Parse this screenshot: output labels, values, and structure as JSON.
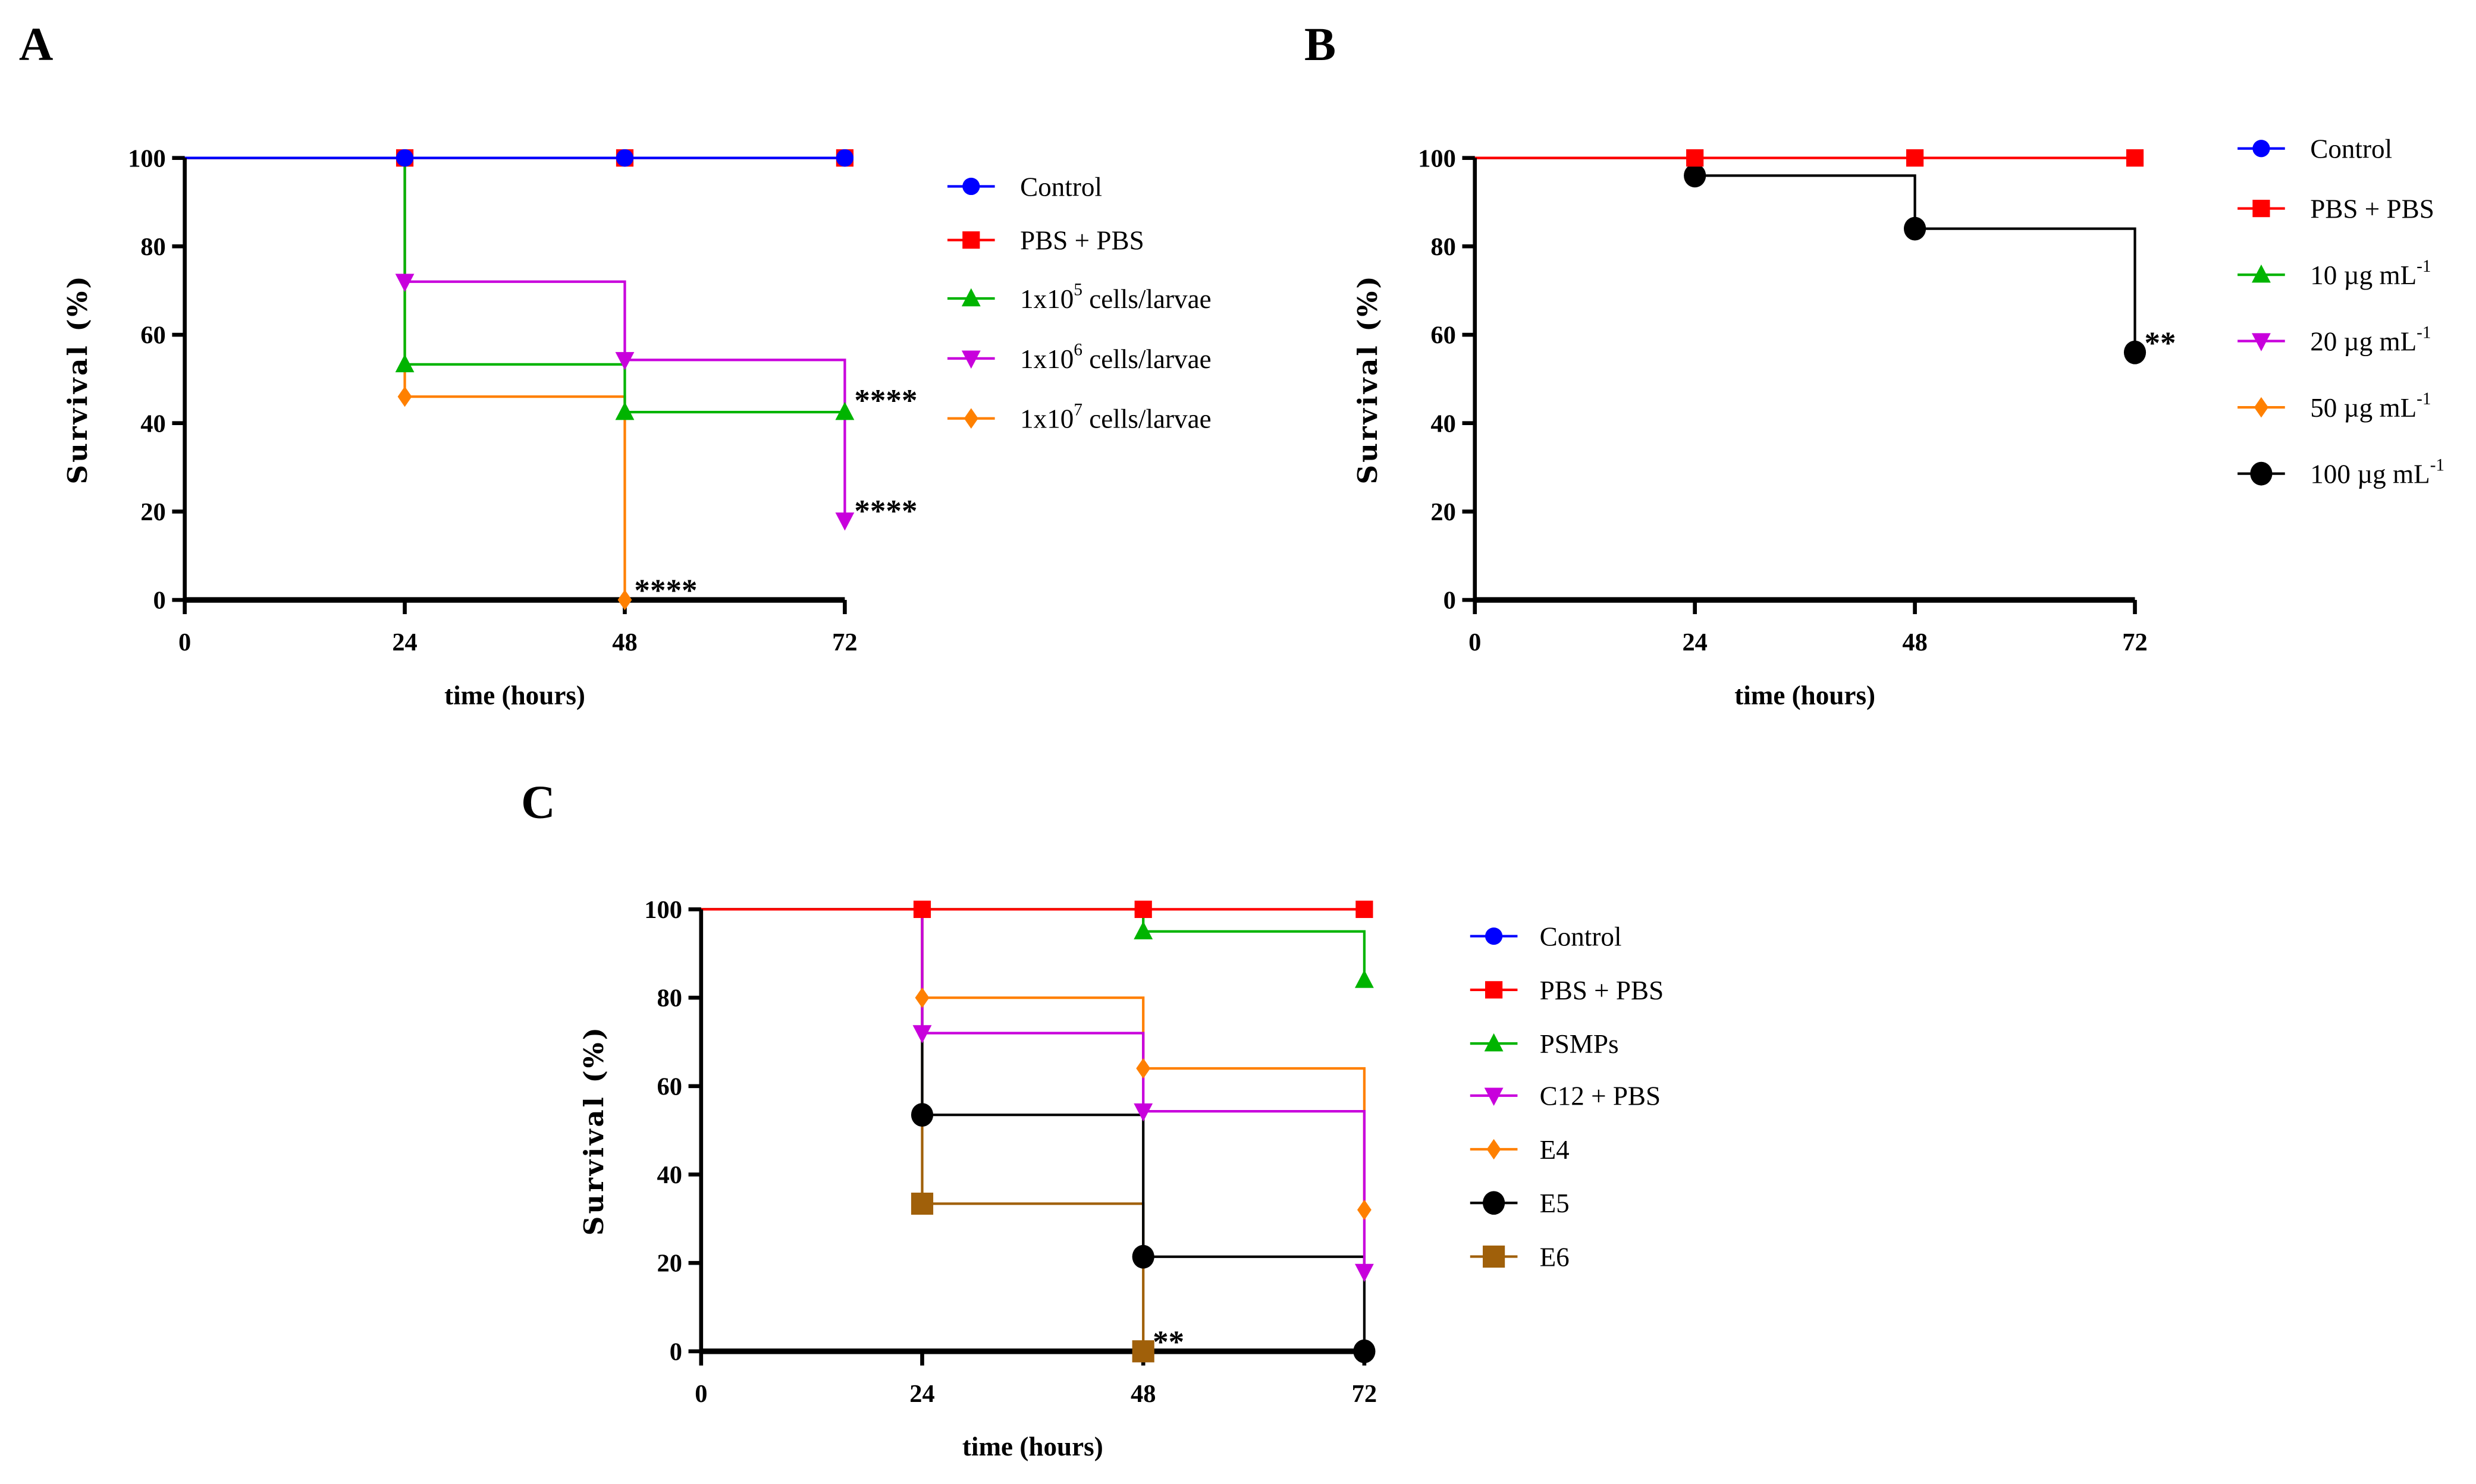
{
  "chart_data": [
    {
      "panel": "A",
      "type": "line",
      "subtype": "kaplan-meier-step",
      "xlabel": "time (hours)",
      "ylabel": "Survival (%)",
      "xlim": [
        0,
        72
      ],
      "ylim": [
        0,
        100
      ],
      "xticks": [
        0,
        24,
        48,
        72
      ],
      "yticks": [
        0,
        20,
        40,
        60,
        80,
        100
      ],
      "legend_position": "right",
      "series": [
        {
          "name": "Control",
          "label": {
            "base": "Control"
          },
          "color": "#0000ff",
          "marker": "circle",
          "x": [
            24,
            48,
            72
          ],
          "y": [
            100,
            100,
            100
          ]
        },
        {
          "name": "PBS + PBS",
          "label": {
            "base": "PBS + PBS"
          },
          "color": "#ff0000",
          "marker": "square",
          "x": [
            24,
            48,
            72
          ],
          "y": [
            100,
            100,
            100
          ]
        },
        {
          "name": "1x10^5 cells/larvae",
          "label": {
            "base": "1x10",
            "sup": "5",
            "rest": " cells/larvae"
          },
          "color": "#00b400",
          "marker": "triangle-up",
          "x": [
            24,
            48,
            72
          ],
          "y": [
            53.3,
            42.5,
            42.5
          ]
        },
        {
          "name": "1x10^6 cells/larvae",
          "label": {
            "base": "1x10",
            "sup": "6",
            "rest": " cells/larvae"
          },
          "color": "#c800dc",
          "marker": "triangle-down",
          "x": [
            24,
            48,
            72
          ],
          "y": [
            72,
            54.3,
            18
          ]
        },
        {
          "name": "1x10^7 cells/larvae",
          "label": {
            "base": "1x10",
            "sup": "7",
            "rest": " cells/larvae"
          },
          "color": "#ff8000",
          "marker": "diamond",
          "x": [
            24,
            48
          ],
          "y": [
            46,
            0
          ]
        }
      ],
      "draw_order": [
        4,
        3,
        2,
        1,
        0
      ],
      "annotations": [
        {
          "text": "****",
          "x": 72,
          "y": 46
        },
        {
          "text": "****",
          "x": 72,
          "y": 21
        },
        {
          "text": "****",
          "x": 48,
          "y": 3
        }
      ]
    },
    {
      "panel": "B",
      "type": "line",
      "subtype": "kaplan-meier-step",
      "xlabel": "time (hours)",
      "ylabel": "Survival (%)",
      "xlim": [
        0,
        72
      ],
      "ylim": [
        0,
        100
      ],
      "xticks": [
        0,
        24,
        48,
        72
      ],
      "yticks": [
        0,
        20,
        40,
        60,
        80,
        100
      ],
      "legend_position": "right",
      "series": [
        {
          "name": "Control",
          "label": {
            "base": "Control"
          },
          "color": "#0000ff",
          "marker": "circle",
          "x": [],
          "y": []
        },
        {
          "name": "PBS + PBS",
          "label": {
            "base": "PBS + PBS"
          },
          "color": "#ff0000",
          "marker": "square",
          "x": [
            24,
            48,
            72
          ],
          "y": [
            100,
            100,
            100
          ]
        },
        {
          "name": "10 µg mL-1",
          "label": {
            "base": "10 µg mL",
            "sup": "-1"
          },
          "color": "#00b400",
          "marker": "triangle-up",
          "x": [],
          "y": []
        },
        {
          "name": "20 µg mL-1",
          "label": {
            "base": "20 µg mL",
            "sup": "-1"
          },
          "color": "#c800dc",
          "marker": "triangle-down",
          "x": [],
          "y": []
        },
        {
          "name": "50 µg mL-1",
          "label": {
            "base": "50 µg mL",
            "sup": "-1"
          },
          "color": "#ff8000",
          "marker": "diamond",
          "x": [],
          "y": []
        },
        {
          "name": "100 µg mL-1",
          "label": {
            "base": "100 µg mL",
            "sup": "-1"
          },
          "color": "#000000",
          "marker": "circle-big",
          "x": [
            24,
            48,
            72
          ],
          "y": [
            96,
            84,
            56
          ]
        }
      ],
      "draw_order": [
        5,
        1
      ],
      "annotations": [
        {
          "text": "**",
          "x": 72,
          "y": 59
        }
      ]
    },
    {
      "panel": "C",
      "type": "line",
      "subtype": "kaplan-meier-step",
      "xlabel": "time (hours)",
      "ylabel": "Survival (%)",
      "xlim": [
        0,
        72
      ],
      "ylim": [
        0,
        100
      ],
      "xticks": [
        0,
        24,
        48,
        72
      ],
      "yticks": [
        0,
        20,
        40,
        60,
        80,
        100
      ],
      "legend_position": "right",
      "series": [
        {
          "name": "Control",
          "label": {
            "base": "Control"
          },
          "color": "#0000ff",
          "marker": "circle",
          "x": [],
          "y": []
        },
        {
          "name": "PBS + PBS",
          "label": {
            "base": "PBS + PBS"
          },
          "color": "#ff0000",
          "marker": "square",
          "x": [
            24,
            48,
            72
          ],
          "y": [
            100,
            100,
            100
          ]
        },
        {
          "name": "PSMPs",
          "label": {
            "base": "PSMPs"
          },
          "color": "#00b400",
          "marker": "triangle-up",
          "x": [
            48,
            72
          ],
          "y": [
            95,
            84
          ]
        },
        {
          "name": "C12 + PBS",
          "label": {
            "base": "C12 + PBS"
          },
          "color": "#c800dc",
          "marker": "triangle-down",
          "x": [
            24,
            48,
            72
          ],
          "y": [
            72,
            54.3,
            18
          ]
        },
        {
          "name": "E4",
          "label": {
            "base": "E4"
          },
          "color": "#ff8000",
          "marker": "diamond",
          "x": [
            24,
            48,
            72
          ],
          "y": [
            80,
            64,
            32
          ]
        },
        {
          "name": "E5",
          "label": {
            "base": "E5"
          },
          "color": "#000000",
          "marker": "circle-big",
          "x": [
            24,
            48,
            72
          ],
          "y": [
            53.5,
            21.4,
            0
          ]
        },
        {
          "name": "E6",
          "label": {
            "base": "E6"
          },
          "color": "#a0600a",
          "marker": "square-big",
          "x": [
            24,
            48
          ],
          "y": [
            33.4,
            0
          ]
        }
      ],
      "draw_order": [
        6,
        5,
        4,
        3,
        2,
        1
      ],
      "annotations": [
        {
          "text": "**",
          "x": 48,
          "y": 3
        }
      ]
    }
  ]
}
